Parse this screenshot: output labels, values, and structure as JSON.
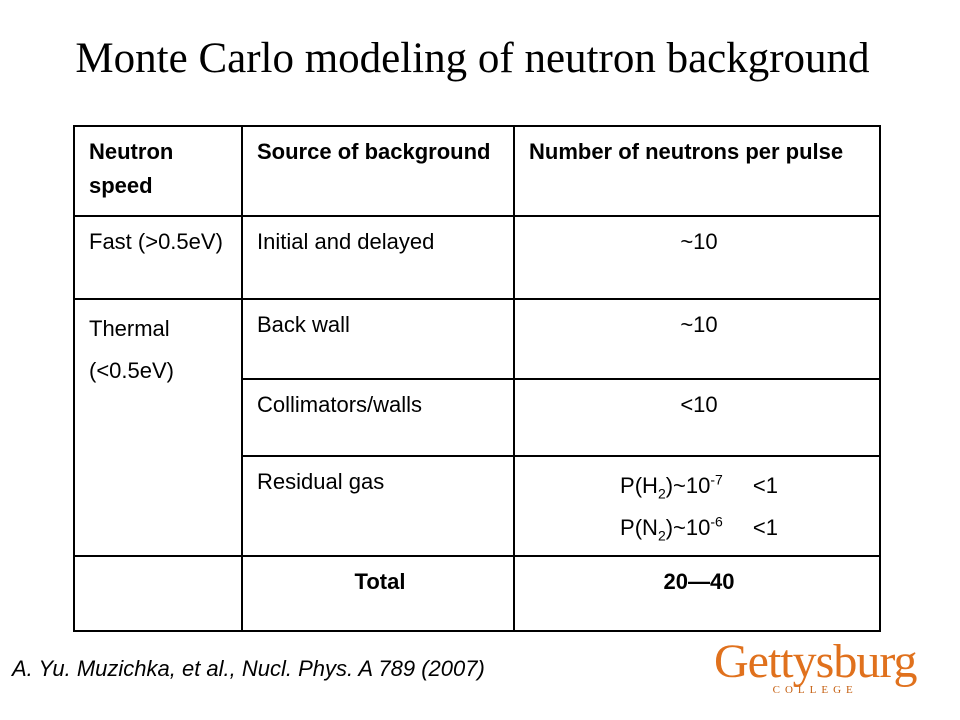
{
  "title": "Monte Carlo modeling of neutron background",
  "table": {
    "header": [
      "Neutron speed",
      "Source of background",
      "Number of neutrons per pulse"
    ],
    "rows": [
      {
        "speed": "Fast (>0.5eV)",
        "source": "Initial and delayed",
        "number": "~10"
      },
      {
        "speed": "Thermal",
        "speed_range": "(<0.5eV)",
        "source": "Back wall",
        "number": "~10"
      },
      {
        "source": "Collimators/walls",
        "number": "<10"
      },
      {
        "source": "Residual gas",
        "lines": [
          {
            "parts": [
              "P(H",
              "2",
              ")~10",
              "-7"
            ],
            "value": "<1"
          },
          {
            "parts": [
              "P(N",
              "2",
              ")~10",
              "-6"
            ],
            "value": "<1"
          }
        ]
      },
      {
        "source": "Total",
        "number": "20—40"
      }
    ]
  },
  "citation": "A. Yu. Muzichka, et al., Nucl. Phys. A 789 (2007)",
  "logo": {
    "name": "Gettysburg",
    "sub": "COLLEGE"
  }
}
